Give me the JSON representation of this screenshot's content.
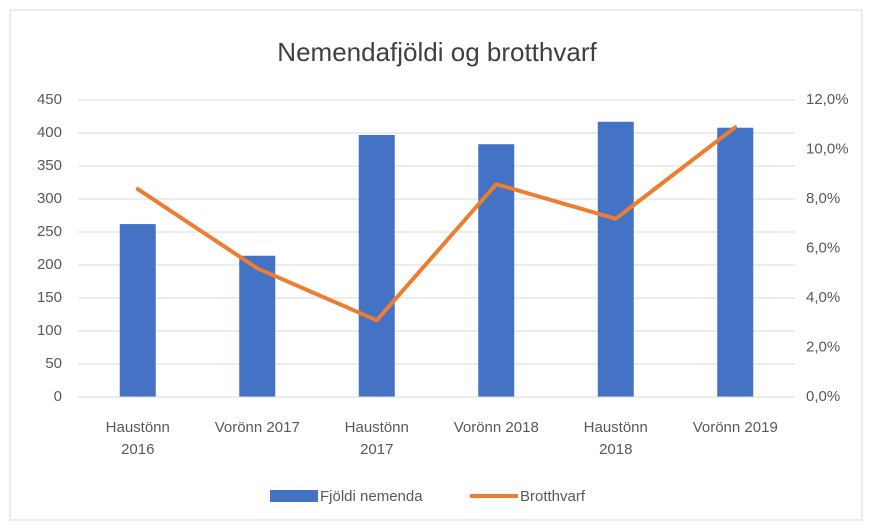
{
  "chart_data": {
    "type": "bar-line",
    "title": "Nemendafjöldi og brotthvarf",
    "categories": [
      "Haustönn\n2016",
      "Vorönn 2017",
      "Haustönn\n2017",
      "Vorönn 2018",
      "Haustönn\n2018",
      "Vorönn 2019"
    ],
    "series": [
      {
        "name": "Fjöldi nemenda",
        "type": "bar",
        "color": "#4472c4",
        "values": [
          262,
          214,
          397,
          383,
          417,
          408
        ]
      },
      {
        "name": "Brotthvarf",
        "type": "line",
        "axis": "y2",
        "color": "#ed7d31",
        "values": [
          8.4,
          5.2,
          3.1,
          8.6,
          7.2,
          10.9
        ]
      }
    ],
    "ylim": [
      0,
      450
    ],
    "yticks": [
      0,
      50,
      100,
      150,
      200,
      250,
      300,
      350,
      400,
      450
    ],
    "y2lim": [
      0,
      12
    ],
    "y2ticks": [
      {
        "value": 0,
        "label": "0,0%"
      },
      {
        "value": 2,
        "label": "2,0%"
      },
      {
        "value": 4,
        "label": "4,0%"
      },
      {
        "value": 6,
        "label": "6,0%"
      },
      {
        "value": 8,
        "label": "8,0%"
      },
      {
        "value": 10,
        "label": "10,0%"
      },
      {
        "value": 12,
        "label": "12,0%"
      }
    ],
    "grid": true,
    "legend": "bottom"
  }
}
